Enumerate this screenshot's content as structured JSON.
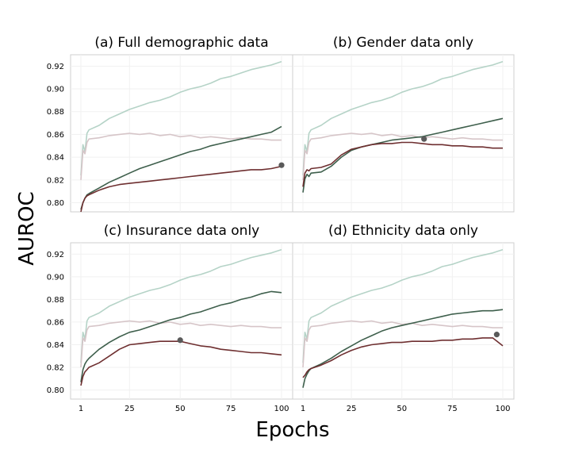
{
  "figure": {
    "ylabel": "AUROC",
    "xlabel": "Epochs"
  },
  "colors": {
    "series_a": "#b5d3c7",
    "series_b": "#d6c5c8",
    "series_c": "#3e5f4c",
    "series_d": "#6e2f30",
    "marker": "#5a5a5a"
  },
  "chart_data": [
    {
      "type": "line",
      "title": "(a) Full demographic data",
      "xlabel": "",
      "ylabel": "",
      "xlim": [
        1,
        100
      ],
      "ylim": [
        0.792,
        0.93
      ],
      "xticks": [
        1,
        25,
        50,
        75,
        100
      ],
      "yticks": [
        0.8,
        0.82,
        0.84,
        0.86,
        0.88,
        0.9,
        0.92
      ],
      "grid": true,
      "series": [
        {
          "x": [
            1,
            2,
            3,
            4,
            5,
            10,
            15,
            20,
            25,
            30,
            35,
            40,
            45,
            50,
            55,
            60,
            65,
            70,
            75,
            80,
            85,
            90,
            95,
            100
          ],
          "y": [
            0.824,
            0.851,
            0.845,
            0.861,
            0.864,
            0.868,
            0.874,
            0.878,
            0.882,
            0.885,
            0.888,
            0.89,
            0.893,
            0.897,
            0.9,
            0.902,
            0.905,
            0.909,
            0.911,
            0.914,
            0.917,
            0.919,
            0.921,
            0.924
          ]
        },
        {
          "x": [
            1,
            2,
            3,
            4,
            5,
            10,
            15,
            20,
            25,
            30,
            35,
            40,
            45,
            50,
            55,
            60,
            65,
            70,
            75,
            80,
            85,
            90,
            95,
            100
          ],
          "y": [
            0.82,
            0.846,
            0.843,
            0.853,
            0.856,
            0.857,
            0.859,
            0.86,
            0.861,
            0.86,
            0.861,
            0.859,
            0.86,
            0.858,
            0.859,
            0.857,
            0.858,
            0.857,
            0.856,
            0.857,
            0.856,
            0.856,
            0.855,
            0.855
          ]
        },
        {
          "x": [
            1,
            2,
            3,
            4,
            5,
            10,
            15,
            20,
            25,
            30,
            35,
            40,
            45,
            50,
            55,
            60,
            65,
            70,
            75,
            80,
            85,
            90,
            95,
            100
          ],
          "y": [
            0.794,
            0.8,
            0.804,
            0.807,
            0.808,
            0.813,
            0.818,
            0.822,
            0.826,
            0.83,
            0.833,
            0.836,
            0.839,
            0.842,
            0.845,
            0.847,
            0.85,
            0.852,
            0.854,
            0.856,
            0.858,
            0.86,
            0.862,
            0.867
          ]
        },
        {
          "x": [
            1,
            2,
            3,
            4,
            5,
            10,
            15,
            20,
            25,
            30,
            35,
            40,
            45,
            50,
            55,
            60,
            65,
            70,
            75,
            80,
            85,
            90,
            95,
            100
          ],
          "y": [
            0.792,
            0.8,
            0.804,
            0.806,
            0.807,
            0.811,
            0.814,
            0.816,
            0.817,
            0.818,
            0.819,
            0.82,
            0.821,
            0.822,
            0.823,
            0.824,
            0.825,
            0.826,
            0.827,
            0.828,
            0.829,
            0.829,
            0.83,
            0.832
          ]
        }
      ],
      "marker": {
        "x": 100,
        "y": 0.833
      }
    },
    {
      "type": "line",
      "title": "(b) Gender data only",
      "xlabel": "",
      "ylabel": "",
      "xlim": [
        1,
        100
      ],
      "ylim": [
        0.792,
        0.93
      ],
      "xticks": [
        1,
        25,
        50,
        75,
        100
      ],
      "yticks": [
        0.8,
        0.82,
        0.84,
        0.86,
        0.88,
        0.9,
        0.92
      ],
      "grid": true,
      "series": [
        {
          "x": [
            1,
            2,
            3,
            4,
            5,
            10,
            15,
            20,
            25,
            30,
            35,
            40,
            45,
            50,
            55,
            60,
            65,
            70,
            75,
            80,
            85,
            90,
            95,
            100
          ],
          "y": [
            0.824,
            0.851,
            0.845,
            0.861,
            0.864,
            0.868,
            0.874,
            0.878,
            0.882,
            0.885,
            0.888,
            0.89,
            0.893,
            0.897,
            0.9,
            0.902,
            0.905,
            0.909,
            0.911,
            0.914,
            0.917,
            0.919,
            0.921,
            0.924
          ]
        },
        {
          "x": [
            1,
            2,
            3,
            4,
            5,
            10,
            15,
            20,
            25,
            30,
            35,
            40,
            45,
            50,
            55,
            60,
            65,
            70,
            75,
            80,
            85,
            90,
            95,
            100
          ],
          "y": [
            0.82,
            0.846,
            0.843,
            0.853,
            0.856,
            0.857,
            0.859,
            0.86,
            0.861,
            0.86,
            0.861,
            0.859,
            0.86,
            0.858,
            0.859,
            0.857,
            0.858,
            0.857,
            0.856,
            0.857,
            0.856,
            0.856,
            0.855,
            0.855
          ]
        },
        {
          "x": [
            1,
            2,
            3,
            4,
            5,
            10,
            15,
            20,
            25,
            30,
            35,
            40,
            45,
            50,
            55,
            60,
            65,
            70,
            75,
            80,
            85,
            90,
            95,
            100
          ],
          "y": [
            0.809,
            0.821,
            0.825,
            0.823,
            0.826,
            0.827,
            0.832,
            0.84,
            0.846,
            0.849,
            0.851,
            0.853,
            0.855,
            0.856,
            0.857,
            0.858,
            0.86,
            0.862,
            0.864,
            0.866,
            0.868,
            0.87,
            0.872,
            0.874
          ]
        },
        {
          "x": [
            1,
            2,
            3,
            4,
            5,
            10,
            15,
            20,
            25,
            30,
            35,
            40,
            45,
            50,
            55,
            60,
            65,
            70,
            75,
            80,
            85,
            90,
            95,
            100
          ],
          "y": [
            0.814,
            0.826,
            0.829,
            0.828,
            0.83,
            0.831,
            0.834,
            0.842,
            0.847,
            0.849,
            0.851,
            0.852,
            0.852,
            0.853,
            0.853,
            0.852,
            0.851,
            0.851,
            0.85,
            0.85,
            0.849,
            0.849,
            0.848,
            0.848
          ]
        }
      ],
      "marker": {
        "x": 61,
        "y": 0.856
      }
    },
    {
      "type": "line",
      "title": "(c) Insurance data only",
      "xlabel": "",
      "ylabel": "",
      "xlim": [
        1,
        100
      ],
      "ylim": [
        0.792,
        0.93
      ],
      "xticks": [
        1,
        25,
        50,
        75,
        100
      ],
      "yticks": [
        0.8,
        0.82,
        0.84,
        0.86,
        0.88,
        0.9,
        0.92
      ],
      "grid": true,
      "series": [
        {
          "x": [
            1,
            2,
            3,
            4,
            5,
            10,
            15,
            20,
            25,
            30,
            35,
            40,
            45,
            50,
            55,
            60,
            65,
            70,
            75,
            80,
            85,
            90,
            95,
            100
          ],
          "y": [
            0.824,
            0.851,
            0.845,
            0.861,
            0.864,
            0.868,
            0.874,
            0.878,
            0.882,
            0.885,
            0.888,
            0.89,
            0.893,
            0.897,
            0.9,
            0.902,
            0.905,
            0.909,
            0.911,
            0.914,
            0.917,
            0.919,
            0.921,
            0.924
          ]
        },
        {
          "x": [
            1,
            2,
            3,
            4,
            5,
            10,
            15,
            20,
            25,
            30,
            35,
            40,
            45,
            50,
            55,
            60,
            65,
            70,
            75,
            80,
            85,
            90,
            95,
            100
          ],
          "y": [
            0.82,
            0.846,
            0.843,
            0.853,
            0.856,
            0.857,
            0.859,
            0.86,
            0.861,
            0.86,
            0.861,
            0.859,
            0.86,
            0.858,
            0.859,
            0.857,
            0.858,
            0.857,
            0.856,
            0.857,
            0.856,
            0.856,
            0.855,
            0.855
          ]
        },
        {
          "x": [
            1,
            2,
            3,
            4,
            5,
            10,
            15,
            20,
            25,
            30,
            35,
            40,
            45,
            50,
            55,
            60,
            65,
            70,
            75,
            80,
            85,
            90,
            95,
            100
          ],
          "y": [
            0.807,
            0.818,
            0.823,
            0.826,
            0.828,
            0.836,
            0.842,
            0.847,
            0.851,
            0.853,
            0.856,
            0.859,
            0.862,
            0.864,
            0.867,
            0.869,
            0.872,
            0.875,
            0.877,
            0.88,
            0.882,
            0.885,
            0.887,
            0.886
          ]
        },
        {
          "x": [
            1,
            2,
            3,
            4,
            5,
            10,
            15,
            20,
            25,
            30,
            35,
            40,
            45,
            50,
            55,
            60,
            65,
            70,
            75,
            80,
            85,
            90,
            95,
            100
          ],
          "y": [
            0.804,
            0.812,
            0.816,
            0.818,
            0.82,
            0.824,
            0.83,
            0.836,
            0.84,
            0.841,
            0.842,
            0.843,
            0.843,
            0.843,
            0.841,
            0.839,
            0.838,
            0.836,
            0.835,
            0.834,
            0.833,
            0.833,
            0.832,
            0.831
          ]
        }
      ],
      "marker": {
        "x": 50,
        "y": 0.844
      }
    },
    {
      "type": "line",
      "title": "(d) Ethnicity data only",
      "xlabel": "",
      "ylabel": "",
      "xlim": [
        1,
        100
      ],
      "ylim": [
        0.792,
        0.93
      ],
      "xticks": [
        1,
        25,
        50,
        75,
        100
      ],
      "yticks": [
        0.8,
        0.82,
        0.84,
        0.86,
        0.88,
        0.9,
        0.92
      ],
      "grid": true,
      "series": [
        {
          "x": [
            1,
            2,
            3,
            4,
            5,
            10,
            15,
            20,
            25,
            30,
            35,
            40,
            45,
            50,
            55,
            60,
            65,
            70,
            75,
            80,
            85,
            90,
            95,
            100
          ],
          "y": [
            0.824,
            0.851,
            0.845,
            0.861,
            0.864,
            0.868,
            0.874,
            0.878,
            0.882,
            0.885,
            0.888,
            0.89,
            0.893,
            0.897,
            0.9,
            0.902,
            0.905,
            0.909,
            0.911,
            0.914,
            0.917,
            0.919,
            0.921,
            0.924
          ]
        },
        {
          "x": [
            1,
            2,
            3,
            4,
            5,
            10,
            15,
            20,
            25,
            30,
            35,
            40,
            45,
            50,
            55,
            60,
            65,
            70,
            75,
            80,
            85,
            90,
            95,
            100
          ],
          "y": [
            0.82,
            0.846,
            0.843,
            0.853,
            0.856,
            0.857,
            0.859,
            0.86,
            0.861,
            0.86,
            0.861,
            0.859,
            0.86,
            0.858,
            0.859,
            0.857,
            0.858,
            0.857,
            0.856,
            0.857,
            0.856,
            0.856,
            0.855,
            0.855
          ]
        },
        {
          "x": [
            1,
            2,
            3,
            4,
            5,
            10,
            15,
            20,
            25,
            30,
            35,
            40,
            45,
            50,
            55,
            60,
            65,
            70,
            75,
            80,
            85,
            90,
            95,
            100
          ],
          "y": [
            0.802,
            0.81,
            0.814,
            0.817,
            0.819,
            0.823,
            0.828,
            0.834,
            0.839,
            0.844,
            0.848,
            0.852,
            0.855,
            0.857,
            0.859,
            0.861,
            0.863,
            0.865,
            0.867,
            0.868,
            0.869,
            0.87,
            0.87,
            0.871
          ]
        },
        {
          "x": [
            1,
            2,
            3,
            4,
            5,
            10,
            15,
            20,
            25,
            30,
            35,
            40,
            45,
            50,
            55,
            60,
            65,
            70,
            75,
            80,
            85,
            90,
            95,
            100
          ],
          "y": [
            0.811,
            0.813,
            0.816,
            0.818,
            0.819,
            0.822,
            0.826,
            0.831,
            0.835,
            0.838,
            0.84,
            0.841,
            0.842,
            0.842,
            0.843,
            0.843,
            0.843,
            0.844,
            0.844,
            0.845,
            0.845,
            0.846,
            0.846,
            0.839
          ]
        }
      ],
      "marker": {
        "x": 97,
        "y": 0.849
      }
    }
  ]
}
